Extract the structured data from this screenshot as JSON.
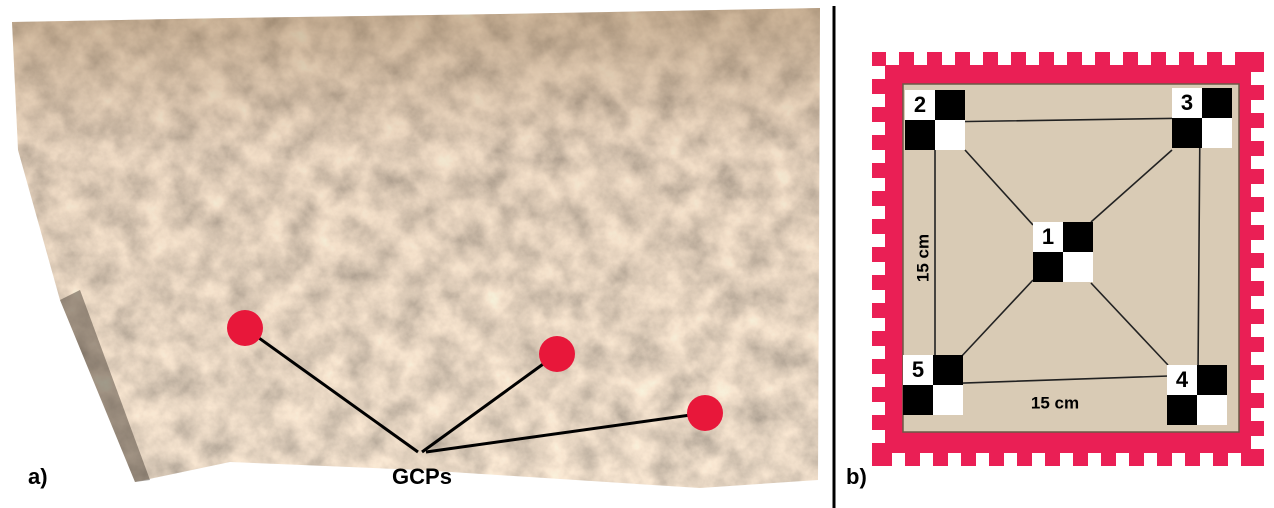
{
  "panel_a": {
    "label": "a)",
    "annotation": "GCPs"
  },
  "panel_b": {
    "label": "b)",
    "markers": [
      "1",
      "2",
      "3",
      "4",
      "5"
    ],
    "height_label": "15 cm",
    "width_label": "15 cm"
  }
}
